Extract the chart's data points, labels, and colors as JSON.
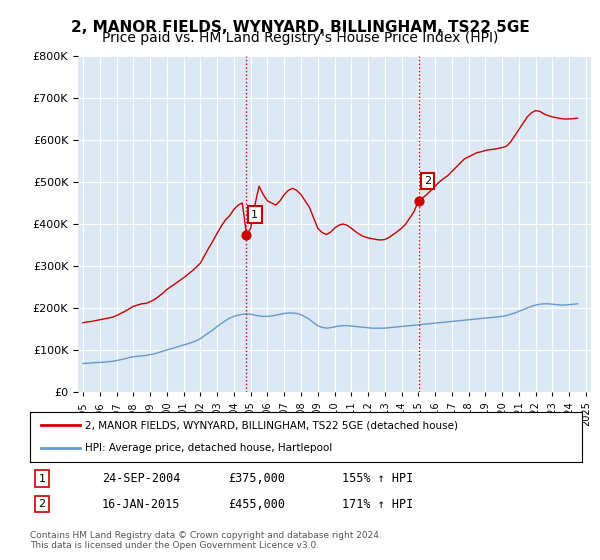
{
  "title": "2, MANOR FIELDS, WYNYARD, BILLINGHAM, TS22 5GE",
  "subtitle": "Price paid vs. HM Land Registry's House Price Index (HPI)",
  "title_fontsize": 11,
  "subtitle_fontsize": 10,
  "background_color": "#ffffff",
  "plot_bg_color": "#dce9f5",
  "legend_line1": "2, MANOR FIELDS, WYNYARD, BILLINGHAM, TS22 5GE (detached house)",
  "legend_line2": "HPI: Average price, detached house, Hartlepool",
  "footnote": "Contains HM Land Registry data © Crown copyright and database right 2024.\nThis data is licensed under the Open Government Licence v3.0.",
  "transaction1_label": "1",
  "transaction1_date": "24-SEP-2004",
  "transaction1_price": "£375,000",
  "transaction1_hpi": "155% ↑ HPI",
  "transaction2_label": "2",
  "transaction2_date": "16-JAN-2015",
  "transaction2_price": "£455,000",
  "transaction2_hpi": "171% ↑ HPI",
  "ylim": [
    0,
    800000
  ],
  "yticks": [
    0,
    100000,
    200000,
    300000,
    400000,
    500000,
    600000,
    700000,
    800000
  ],
  "xmin_year": 1995,
  "xmax_year": 2025,
  "xtick_years": [
    1995,
    1996,
    1997,
    1998,
    1999,
    2000,
    2001,
    2002,
    2003,
    2004,
    2005,
    2006,
    2007,
    2008,
    2009,
    2010,
    2011,
    2012,
    2013,
    2014,
    2015,
    2016,
    2017,
    2018,
    2019,
    2020,
    2021,
    2022,
    2023,
    2024,
    2025
  ],
  "line_color_property": "#cc0000",
  "line_color_hpi": "#6699cc",
  "vline_color": "#cc0000",
  "vline_style": ":",
  "marker1_x": 2004.73,
  "marker1_y": 375000,
  "marker2_x": 2015.04,
  "marker2_y": 455000,
  "hpi_data_x": [
    1995.0,
    1995.25,
    1995.5,
    1995.75,
    1996.0,
    1996.25,
    1996.5,
    1996.75,
    1997.0,
    1997.25,
    1997.5,
    1997.75,
    1998.0,
    1998.25,
    1998.5,
    1998.75,
    1999.0,
    1999.25,
    1999.5,
    1999.75,
    2000.0,
    2000.25,
    2000.5,
    2000.75,
    2001.0,
    2001.25,
    2001.5,
    2001.75,
    2002.0,
    2002.25,
    2002.5,
    2002.75,
    2003.0,
    2003.25,
    2003.5,
    2003.75,
    2004.0,
    2004.25,
    2004.5,
    2004.75,
    2005.0,
    2005.25,
    2005.5,
    2005.75,
    2006.0,
    2006.25,
    2006.5,
    2006.75,
    2007.0,
    2007.25,
    2007.5,
    2007.75,
    2008.0,
    2008.25,
    2008.5,
    2008.75,
    2009.0,
    2009.25,
    2009.5,
    2009.75,
    2010.0,
    2010.25,
    2010.5,
    2010.75,
    2011.0,
    2011.25,
    2011.5,
    2011.75,
    2012.0,
    2012.25,
    2012.5,
    2012.75,
    2013.0,
    2013.25,
    2013.5,
    2013.75,
    2014.0,
    2014.25,
    2014.5,
    2014.75,
    2015.0,
    2015.25,
    2015.5,
    2015.75,
    2016.0,
    2016.25,
    2016.5,
    2016.75,
    2017.0,
    2017.25,
    2017.5,
    2017.75,
    2018.0,
    2018.25,
    2018.5,
    2018.75,
    2019.0,
    2019.25,
    2019.5,
    2019.75,
    2020.0,
    2020.25,
    2020.5,
    2020.75,
    2021.0,
    2021.25,
    2021.5,
    2021.75,
    2022.0,
    2022.25,
    2022.5,
    2022.75,
    2023.0,
    2023.25,
    2023.5,
    2023.75,
    2024.0,
    2024.25,
    2024.5
  ],
  "hpi_data_y": [
    68000,
    68500,
    69000,
    70000,
    70500,
    71000,
    72000,
    73000,
    75000,
    77000,
    79000,
    82000,
    84000,
    85000,
    86000,
    87000,
    89000,
    91000,
    94000,
    97000,
    100000,
    103000,
    106000,
    109000,
    112000,
    115000,
    118000,
    122000,
    127000,
    134000,
    141000,
    148000,
    156000,
    163000,
    170000,
    176000,
    180000,
    183000,
    185000,
    186000,
    185000,
    183000,
    181000,
    180000,
    180000,
    181000,
    183000,
    185000,
    187000,
    188000,
    188000,
    187000,
    184000,
    179000,
    173000,
    165000,
    158000,
    154000,
    152000,
    153000,
    155000,
    157000,
    158000,
    158000,
    157000,
    156000,
    155000,
    154000,
    153000,
    152000,
    152000,
    152000,
    152000,
    153000,
    154000,
    155000,
    156000,
    157000,
    158000,
    159000,
    160000,
    161000,
    162000,
    163000,
    164000,
    165000,
    166000,
    167000,
    168000,
    169000,
    170000,
    171000,
    172000,
    173000,
    174000,
    175000,
    176000,
    177000,
    178000,
    179000,
    180000,
    182000,
    185000,
    188000,
    192000,
    196000,
    200000,
    204000,
    207000,
    209000,
    210000,
    210000,
    209000,
    208000,
    207000,
    207000,
    208000,
    209000,
    210000
  ],
  "property_data_x": [
    1995.0,
    1995.25,
    1995.5,
    1995.75,
    1996.0,
    1996.25,
    1996.5,
    1996.75,
    1997.0,
    1997.25,
    1997.5,
    1997.75,
    1998.0,
    1998.25,
    1998.5,
    1998.75,
    1999.0,
    1999.25,
    1999.5,
    1999.75,
    2000.0,
    2000.25,
    2000.5,
    2000.75,
    2001.0,
    2001.25,
    2001.5,
    2001.75,
    2002.0,
    2002.25,
    2002.5,
    2002.75,
    2003.0,
    2003.25,
    2003.5,
    2003.75,
    2004.0,
    2004.25,
    2004.5,
    2004.75,
    2005.0,
    2005.25,
    2005.5,
    2005.75,
    2006.0,
    2006.25,
    2006.5,
    2006.75,
    2007.0,
    2007.25,
    2007.5,
    2007.75,
    2008.0,
    2008.25,
    2008.5,
    2008.75,
    2009.0,
    2009.25,
    2009.5,
    2009.75,
    2010.0,
    2010.25,
    2010.5,
    2010.75,
    2011.0,
    2011.25,
    2011.5,
    2011.75,
    2012.0,
    2012.25,
    2012.5,
    2012.75,
    2013.0,
    2013.25,
    2013.5,
    2013.75,
    2014.0,
    2014.25,
    2014.5,
    2014.75,
    2015.0,
    2015.25,
    2015.5,
    2015.75,
    2016.0,
    2016.25,
    2016.5,
    2016.75,
    2017.0,
    2017.25,
    2017.5,
    2017.75,
    2018.0,
    2018.25,
    2018.5,
    2018.75,
    2019.0,
    2019.25,
    2019.5,
    2019.75,
    2020.0,
    2020.25,
    2020.5,
    2020.75,
    2021.0,
    2021.25,
    2021.5,
    2021.75,
    2022.0,
    2022.25,
    2022.5,
    2022.75,
    2023.0,
    2023.25,
    2023.5,
    2023.75,
    2024.0,
    2024.25,
    2024.5
  ],
  "property_data_y": [
    165000,
    167000,
    168000,
    170000,
    172000,
    174000,
    176000,
    178000,
    182000,
    187000,
    192000,
    198000,
    204000,
    207000,
    210000,
    211000,
    215000,
    220000,
    227000,
    235000,
    244000,
    251000,
    258000,
    265000,
    272000,
    280000,
    288000,
    297000,
    307000,
    325000,
    343000,
    360000,
    378000,
    395000,
    410000,
    420000,
    435000,
    445000,
    450000,
    375000,
    390000,
    445000,
    490000,
    470000,
    455000,
    450000,
    445000,
    455000,
    470000,
    480000,
    485000,
    480000,
    470000,
    455000,
    440000,
    415000,
    390000,
    380000,
    375000,
    380000,
    390000,
    397000,
    400000,
    397000,
    390000,
    382000,
    375000,
    370000,
    367000,
    365000,
    363000,
    362000,
    363000,
    368000,
    375000,
    382000,
    390000,
    400000,
    415000,
    430000,
    455000,
    462000,
    470000,
    480000,
    490000,
    500000,
    508000,
    515000,
    525000,
    535000,
    545000,
    555000,
    560000,
    565000,
    570000,
    572000,
    575000,
    577000,
    578000,
    580000,
    582000,
    585000,
    595000,
    610000,
    625000,
    640000,
    655000,
    665000,
    670000,
    668000,
    662000,
    658000,
    655000,
    653000,
    651000,
    650000,
    650000,
    651000,
    652000
  ]
}
